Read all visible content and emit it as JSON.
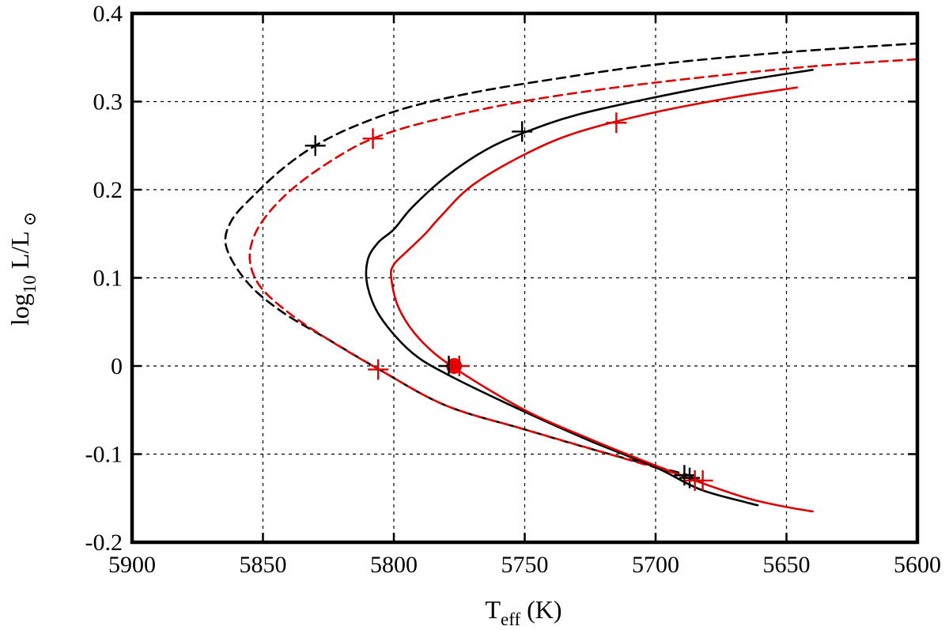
{
  "chart_data": {
    "type": "line",
    "xlabel": {
      "main": "T",
      "sub": "eff",
      "unit": " (K)"
    },
    "ylabel": {
      "main": "log",
      "sub": "10",
      "rest": " L/L",
      "sun": "⊙"
    },
    "xlim": [
      5900,
      5600
    ],
    "ylim": [
      -0.2,
      0.4
    ],
    "x_ticks": [
      5900,
      5850,
      5800,
      5750,
      5700,
      5650,
      5600
    ],
    "x_tick_labels": [
      "5900",
      "5850",
      "5800",
      "5750",
      "5700",
      "5650",
      "5600"
    ],
    "y_ticks": [
      -0.2,
      -0.1,
      0,
      0.1,
      0.2,
      0.3,
      0.4
    ],
    "y_tick_labels": [
      "-0.2",
      "-0.1",
      "0",
      "0.1",
      "0.2",
      "0.3",
      "0.4"
    ],
    "grid": true,
    "series": [
      {
        "color": "#000000",
        "dash": "dashed",
        "x": [
          5686,
          5720,
          5750,
          5780,
          5805,
          5825,
          5843,
          5856,
          5864,
          5862,
          5853,
          5842,
          5830,
          5815,
          5795,
          5770,
          5740,
          5700,
          5650,
          5600
        ],
        "y": [
          -0.125,
          -0.098,
          -0.072,
          -0.045,
          -0.005,
          0.03,
          0.062,
          0.095,
          0.135,
          0.165,
          0.195,
          0.225,
          0.25,
          0.272,
          0.293,
          0.31,
          0.325,
          0.342,
          0.356,
          0.366
        ]
      },
      {
        "color": "#dd0000",
        "dash": "dashed",
        "x": [
          5683,
          5720,
          5750,
          5780,
          5805,
          5825,
          5840,
          5851,
          5855,
          5853,
          5846,
          5835,
          5820,
          5808,
          5790,
          5760,
          5730,
          5690,
          5640,
          5600
        ],
        "y": [
          -0.13,
          -0.098,
          -0.072,
          -0.045,
          -0.005,
          0.03,
          0.06,
          0.09,
          0.12,
          0.15,
          0.18,
          0.21,
          0.24,
          0.258,
          0.275,
          0.295,
          0.31,
          0.325,
          0.34,
          0.348
        ]
      },
      {
        "color": "#000000",
        "dash": "solid",
        "x": [
          5661,
          5665,
          5683,
          5700,
          5725,
          5750,
          5778,
          5793,
          5805,
          5810,
          5810,
          5806,
          5800,
          5793,
          5780,
          5765,
          5750,
          5730,
          5700,
          5670,
          5640
        ],
        "y": [
          -0.158,
          -0.155,
          -0.14,
          -0.115,
          -0.085,
          -0.052,
          -0.012,
          0.015,
          0.055,
          0.09,
          0.12,
          0.14,
          0.155,
          0.18,
          0.215,
          0.245,
          0.265,
          0.285,
          0.305,
          0.322,
          0.336
        ]
      },
      {
        "color": "#dd0000",
        "dash": "solid",
        "x": [
          5640,
          5650,
          5665,
          5685,
          5700,
          5725,
          5750,
          5777,
          5790,
          5798,
          5801,
          5800,
          5795,
          5788,
          5782,
          5770,
          5750,
          5730,
          5700,
          5670,
          5646
        ],
        "y": [
          -0.165,
          -0.16,
          -0.15,
          -0.13,
          -0.113,
          -0.083,
          -0.05,
          -0.002,
          0.03,
          0.065,
          0.1,
          0.115,
          0.13,
          0.15,
          0.17,
          0.205,
          0.24,
          0.265,
          0.288,
          0.305,
          0.316
        ]
      }
    ],
    "markers": [
      {
        "color": "#000000",
        "x": 5830,
        "y": 0.25
      },
      {
        "color": "#dd0000",
        "x": 5808,
        "y": 0.258
      },
      {
        "color": "#000000",
        "x": 5751,
        "y": 0.266
      },
      {
        "color": "#dd0000",
        "x": 5715,
        "y": 0.276
      },
      {
        "color": "#000000",
        "x": 5779,
        "y": 0.0
      },
      {
        "color": "#dd0000",
        "x": 5775,
        "y": 0.0
      },
      {
        "color": "#dd0000",
        "x": 5806,
        "y": -0.004
      },
      {
        "color": "#000000",
        "x": 5689,
        "y": -0.124
      },
      {
        "color": "#000000",
        "x": 5687,
        "y": -0.127
      },
      {
        "color": "#dd0000",
        "x": 5685,
        "y": -0.13
      },
      {
        "color": "#dd0000",
        "x": 5682,
        "y": -0.13
      }
    ],
    "reference_point": {
      "color": "#ee0000",
      "x": 5777,
      "y": 0.0
    }
  }
}
